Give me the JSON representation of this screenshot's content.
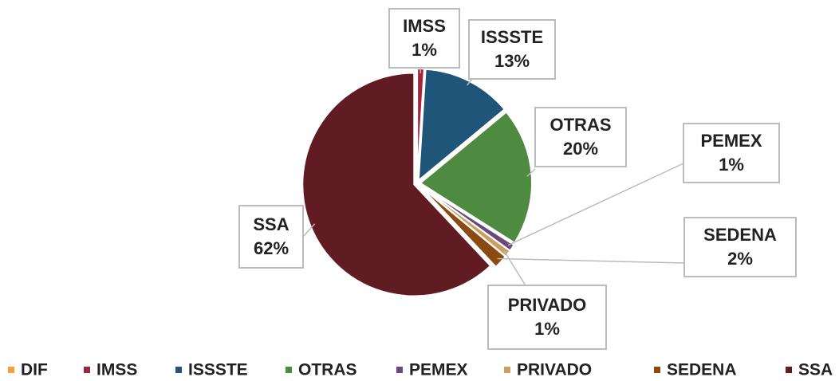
{
  "chart_data": {
    "type": "pie",
    "categories": [
      "DIF",
      "IMSS",
      "ISSSTE",
      "OTRAS",
      "PEMEX",
      "PRIVADO",
      "SEDENA",
      "SSA"
    ],
    "values": [
      0,
      1,
      13,
      20,
      1,
      1,
      2,
      62
    ],
    "value_labels": [
      null,
      "1%",
      "13%",
      "20%",
      "1%",
      "1%",
      "2%",
      "62%"
    ],
    "colors": [
      "#f4a23a",
      "#a5243d",
      "#1f5578",
      "#4e8a3f",
      "#6b4a7a",
      "#c9a062",
      "#8b4a12",
      "#611b22"
    ],
    "legend": "bottom"
  }
}
